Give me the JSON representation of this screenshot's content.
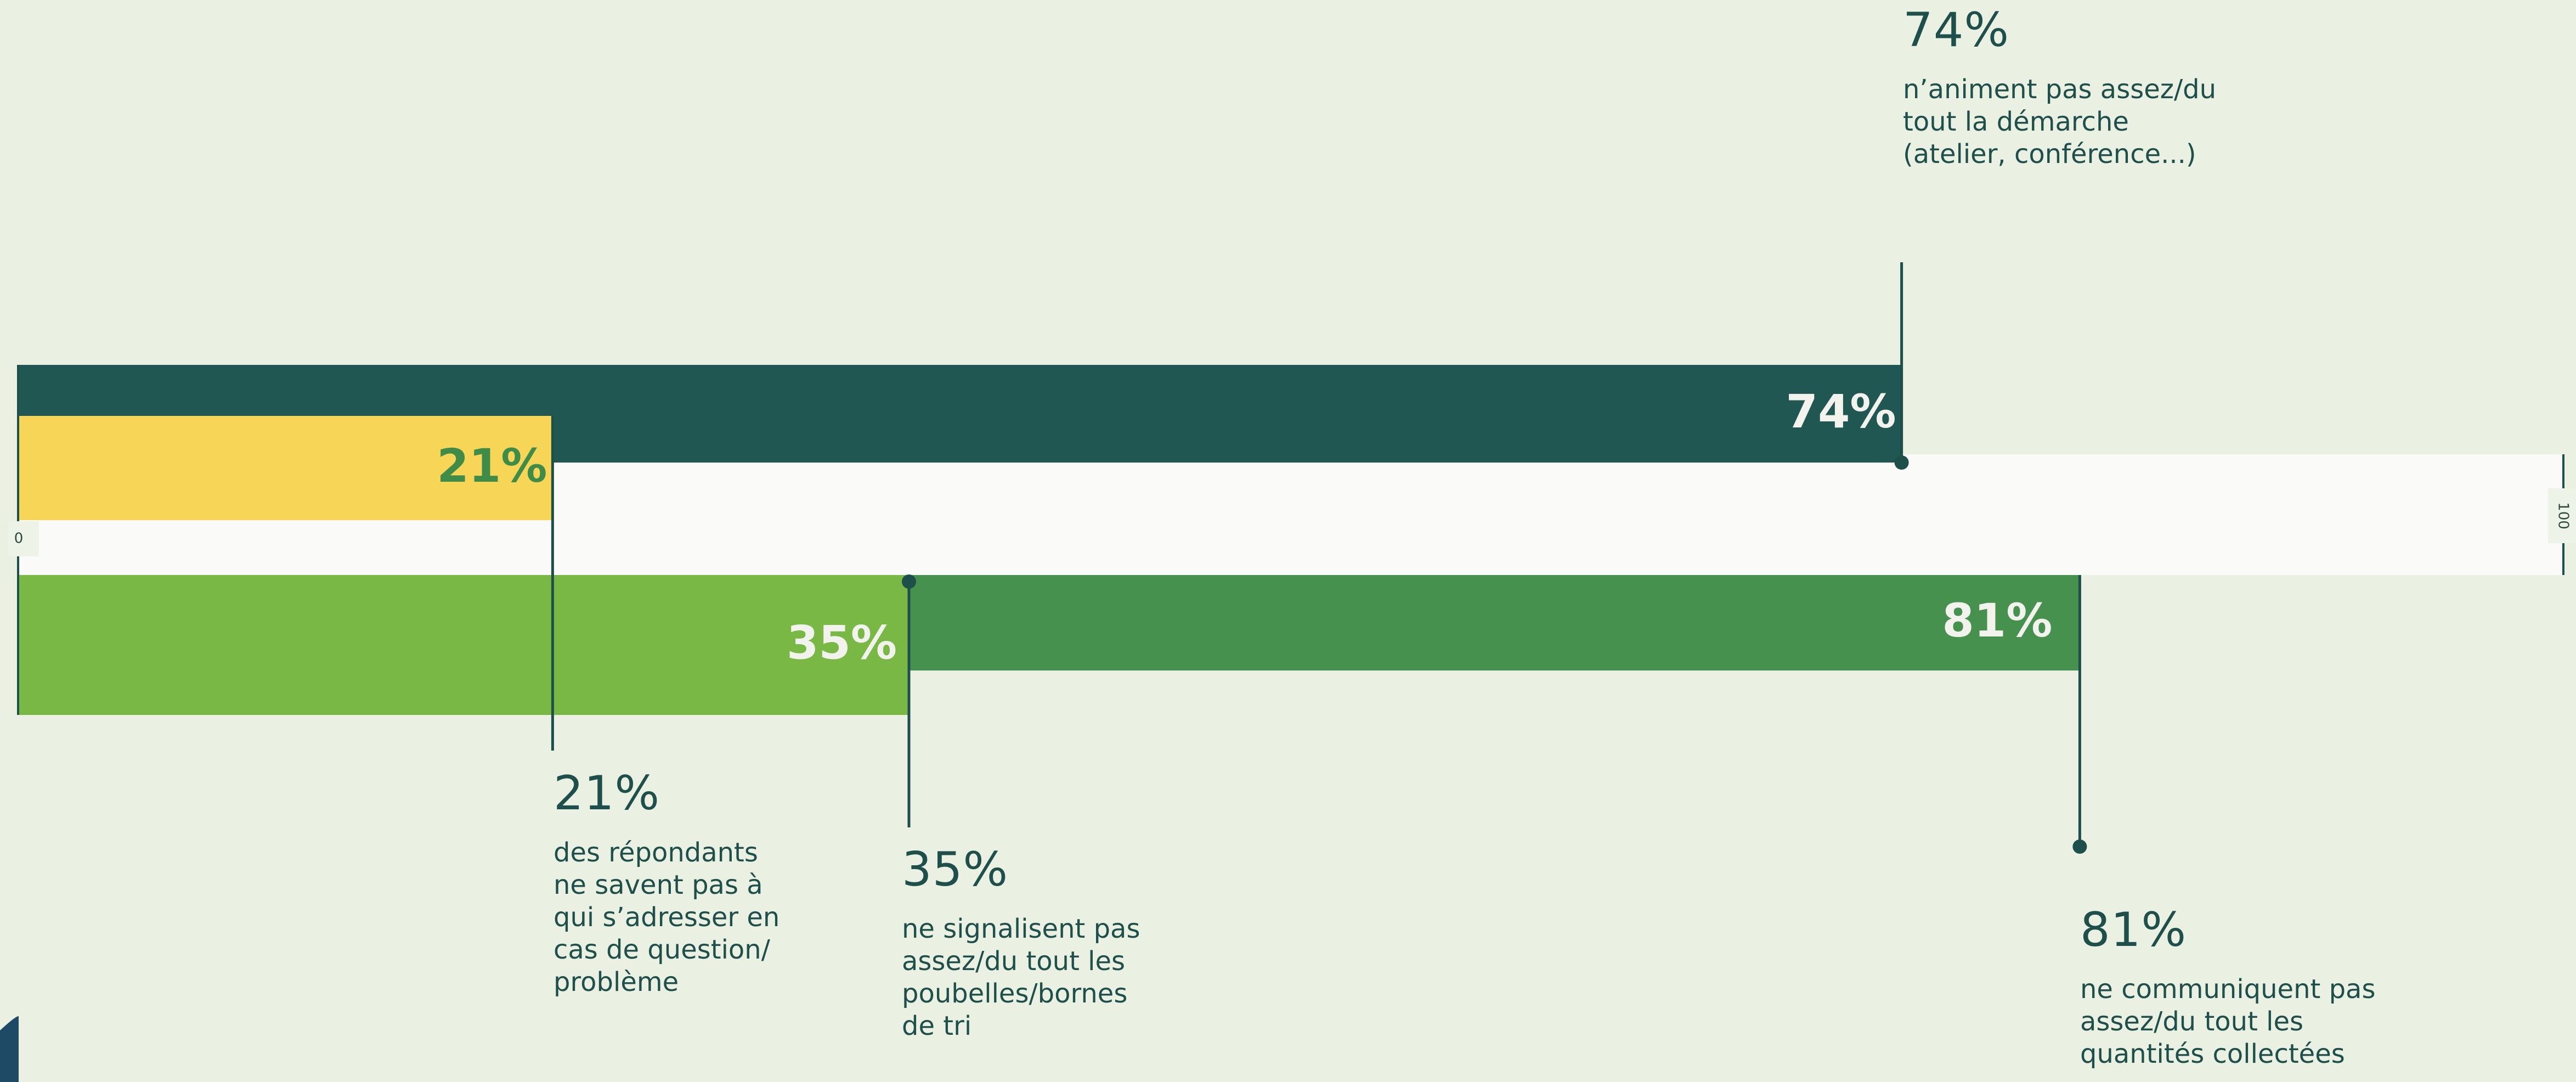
{
  "colors": {
    "background": "#EAF1E2",
    "track": "#FAFAF8",
    "leader": "#1F4F4A",
    "callout_text": "#1F4F4A",
    "corner_accent": "#1E4A66"
  },
  "chart_data": {
    "type": "bar",
    "axis": {
      "min": 0,
      "max": 100,
      "min_label": "0",
      "max_label": "100"
    },
    "series": [
      {
        "value": 74,
        "bar_label": "74%",
        "color": "#205752",
        "label_color": "#F3F3EE",
        "side": "above",
        "callout_value": "74%",
        "callout_text": "n’animent pas assez/du\ntout la démarche\n(atelier, conférence...)"
      },
      {
        "value": 21,
        "bar_label": "21%",
        "color": "#F7D556",
        "label_color": "#3F8C49",
        "side": "above",
        "callout_value": "21%",
        "callout_text": "des répondants\nne savent pas à\nqui s’adresser en\ncas de question/\nproblème"
      },
      {
        "value": 35,
        "bar_label": "35%",
        "color": "#7AB845",
        "label_color": "#F3F3EE",
        "side": "below",
        "callout_value": "35%",
        "callout_text": "ne signalisent pas\nassez/du tout les\npoubelles/bornes\nde tri"
      },
      {
        "value": 81,
        "bar_label": "81%",
        "color": "#46914E",
        "label_color": "#F3F3EE",
        "side": "below",
        "callout_value": "81%",
        "callout_text": "ne communiquent pas\nassez/du tout les\nquantités collectées"
      }
    ]
  }
}
